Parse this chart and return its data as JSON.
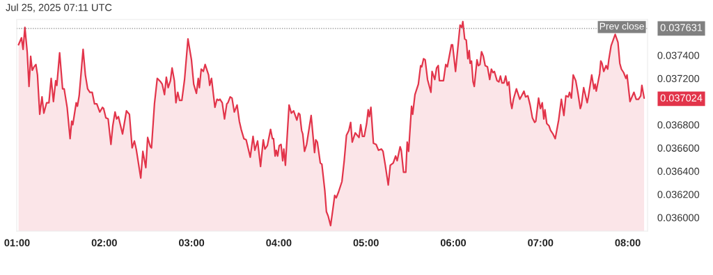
{
  "chart_data": {
    "type": "area",
    "annotations": [
      "Jul 25, 2025 07:11 UTC",
      "0.037024",
      "0.037631"
    ],
    "x": [
      1.017,
      1.051,
      1.069,
      1.09,
      1.116,
      1.137,
      1.156,
      1.174,
      1.195,
      1.216,
      1.234,
      1.26,
      1.286,
      1.307,
      1.339,
      1.365,
      1.391,
      1.417,
      1.443,
      1.456,
      1.488,
      1.522,
      1.54,
      1.574,
      1.608,
      1.626,
      1.639,
      1.678,
      1.692,
      1.712,
      1.757,
      1.783,
      1.809,
      1.835,
      1.861,
      1.888,
      1.914,
      1.948,
      1.979,
      1.992,
      2.018,
      2.044,
      2.076,
      2.097,
      2.123,
      2.141,
      2.162,
      2.209,
      2.254,
      2.288,
      2.319,
      2.345,
      2.366,
      2.418,
      2.442,
      2.476,
      2.497,
      2.528,
      2.541,
      2.575,
      2.607,
      2.646,
      2.664,
      2.69,
      2.711,
      2.732,
      2.758,
      2.777,
      2.803,
      2.821,
      2.842,
      2.863,
      2.889,
      2.92,
      2.959,
      2.999,
      3.025,
      3.056,
      3.077,
      3.09,
      3.111,
      3.135,
      3.156,
      3.195,
      3.208,
      3.229,
      3.268,
      3.292,
      3.312,
      3.326,
      3.352,
      3.378,
      3.404,
      3.417,
      3.443,
      3.464,
      3.49,
      3.522,
      3.548,
      3.569,
      3.6,
      3.626,
      3.673,
      3.705,
      3.726,
      3.757,
      3.791,
      3.822,
      3.841,
      3.869,
      3.906,
      3.927,
      3.94,
      3.958,
      3.971,
      3.987,
      4.005,
      4.026,
      4.045,
      4.058,
      4.076,
      4.118,
      4.144,
      4.17,
      4.207,
      4.227,
      4.241,
      4.262,
      4.275,
      4.295,
      4.319,
      4.371,
      4.41,
      4.424,
      4.442,
      4.476,
      4.494,
      4.528,
      4.546,
      4.567,
      4.594,
      4.62,
      4.641,
      4.659,
      4.685,
      4.724,
      4.75,
      4.776,
      4.803,
      4.824,
      4.842,
      4.876,
      4.92,
      4.939,
      4.959,
      4.98,
      5.007,
      5.025,
      5.038,
      5.056,
      5.085,
      5.116,
      5.143,
      5.177,
      5.195,
      5.221,
      5.255,
      5.278,
      5.312,
      5.339,
      5.357,
      5.391,
      5.404,
      5.43,
      5.456,
      5.472,
      5.488,
      5.522,
      5.535,
      5.561,
      5.6,
      5.626,
      5.639,
      5.66,
      5.678,
      5.705,
      5.744,
      5.757,
      5.788,
      5.809,
      5.828,
      5.841,
      5.888,
      5.914,
      5.932,
      5.979,
      5.992,
      6.026,
      6.078,
      6.097,
      6.11,
      6.131,
      6.149,
      6.167,
      6.183,
      6.193,
      6.209,
      6.227,
      6.241,
      6.272,
      6.288,
      6.306,
      6.324,
      6.345,
      6.366,
      6.392,
      6.418,
      6.437,
      6.455,
      6.471,
      6.502,
      6.523,
      6.541,
      6.559,
      6.58,
      6.601,
      6.62,
      6.638,
      6.659,
      6.672,
      6.69,
      6.724,
      6.763,
      6.784,
      6.81,
      6.829,
      6.855,
      6.881,
      6.907,
      6.933,
      6.946,
      6.978,
      6.999,
      7.02,
      7.038,
      7.051,
      7.072,
      7.098,
      7.116,
      7.143,
      7.169,
      7.208,
      7.239,
      7.268,
      7.291,
      7.318,
      7.333,
      7.354,
      7.375,
      7.404,
      7.43,
      7.456,
      7.469,
      7.495,
      7.535,
      7.548,
      7.587,
      7.613,
      7.626,
      7.639,
      7.678,
      7.691,
      7.705,
      7.725,
      7.752,
      7.77,
      7.783,
      7.809,
      7.856,
      7.888,
      7.909,
      7.927,
      7.953,
      7.979,
      7.992,
      8.026,
      8.071,
      8.097,
      8.123,
      8.149,
      8.162,
      8.188
    ],
    "series": [
      {
        "color": "#e2344a",
        "values": [
          0.03749,
          0.03755,
          0.03745,
          0.03764,
          0.03743,
          0.03713,
          0.03739,
          0.03727,
          0.0373,
          0.03732,
          0.03723,
          0.03689,
          0.03704,
          0.0369,
          0.03699,
          0.03699,
          0.0372,
          0.037,
          0.03718,
          0.03714,
          0.03742,
          0.03711,
          0.03711,
          0.03695,
          0.03668,
          0.03683,
          0.0368,
          0.03699,
          0.03696,
          0.03705,
          0.03745,
          0.03723,
          0.03711,
          0.03708,
          0.03708,
          0.03698,
          0.03698,
          0.03691,
          0.03695,
          0.03694,
          0.03686,
          0.03685,
          0.03663,
          0.03679,
          0.03691,
          0.03685,
          0.03687,
          0.03672,
          0.03692,
          0.03689,
          0.0366,
          0.03666,
          0.03659,
          0.03634,
          0.03657,
          0.03643,
          0.03669,
          0.03661,
          0.0366,
          0.03698,
          0.0372,
          0.03717,
          0.03715,
          0.03706,
          0.03721,
          0.03712,
          0.03718,
          0.03729,
          0.03718,
          0.03699,
          0.03708,
          0.03701,
          0.03701,
          0.03719,
          0.03754,
          0.03736,
          0.03715,
          0.03707,
          0.0372,
          0.03712,
          0.03728,
          0.03726,
          0.03732,
          0.03723,
          0.03714,
          0.0372,
          0.03695,
          0.03702,
          0.03701,
          0.03702,
          0.03699,
          0.03685,
          0.03698,
          0.03699,
          0.03704,
          0.03703,
          0.03691,
          0.03697,
          0.03683,
          0.03676,
          0.03668,
          0.03667,
          0.03652,
          0.0367,
          0.03658,
          0.03666,
          0.03644,
          0.03667,
          0.03659,
          0.03662,
          0.03676,
          0.03668,
          0.03668,
          0.03653,
          0.03658,
          0.03653,
          0.03662,
          0.03663,
          0.03649,
          0.03659,
          0.03645,
          0.03697,
          0.0369,
          0.03692,
          0.03684,
          0.0369,
          0.03689,
          0.03675,
          0.03672,
          0.03657,
          0.03663,
          0.03688,
          0.03656,
          0.03667,
          0.03665,
          0.03647,
          0.03646,
          0.03623,
          0.03605,
          0.03601,
          0.03593,
          0.03607,
          0.03619,
          0.03617,
          0.03622,
          0.03631,
          0.03649,
          0.03671,
          0.03675,
          0.03682,
          0.03665,
          0.03673,
          0.03669,
          0.0368,
          0.0367,
          0.0367,
          0.03681,
          0.03693,
          0.03687,
          0.03695,
          0.03664,
          0.03663,
          0.03658,
          0.03659,
          0.03657,
          0.03645,
          0.03628,
          0.03645,
          0.03647,
          0.03653,
          0.03649,
          0.03661,
          0.03658,
          0.03639,
          0.03639,
          0.03665,
          0.03657,
          0.03696,
          0.03689,
          0.03706,
          0.03715,
          0.03731,
          0.0373,
          0.03737,
          0.03736,
          0.03719,
          0.03708,
          0.03726,
          0.03719,
          0.03729,
          0.03731,
          0.03718,
          0.03718,
          0.03732,
          0.0373,
          0.03749,
          0.03749,
          0.03726,
          0.03766,
          0.03764,
          0.03769,
          0.03754,
          0.03753,
          0.03737,
          0.03744,
          0.03733,
          0.03735,
          0.03717,
          0.03713,
          0.03736,
          0.03731,
          0.03732,
          0.03743,
          0.03739,
          0.03731,
          0.0373,
          0.03719,
          0.03728,
          0.03725,
          0.03726,
          0.03718,
          0.03717,
          0.03722,
          0.03716,
          0.03716,
          0.03722,
          0.03714,
          0.03717,
          0.03699,
          0.03694,
          0.03702,
          0.03711,
          0.03702,
          0.03705,
          0.03709,
          0.03704,
          0.03705,
          0.03697,
          0.03686,
          0.03682,
          0.03683,
          0.03703,
          0.03694,
          0.03699,
          0.03685,
          0.03693,
          0.03681,
          0.03679,
          0.03675,
          0.03672,
          0.03668,
          0.03684,
          0.03702,
          0.03688,
          0.03705,
          0.03704,
          0.03708,
          0.03703,
          0.03723,
          0.03718,
          0.03707,
          0.03694,
          0.03697,
          0.03712,
          0.03699,
          0.03704,
          0.03723,
          0.03711,
          0.03715,
          0.03709,
          0.03724,
          0.03735,
          0.03733,
          0.03726,
          0.03731,
          0.03728,
          0.03736,
          0.03748,
          0.03758,
          0.03751,
          0.03733,
          0.03728,
          0.03725,
          0.0372,
          0.03723,
          0.037,
          0.03708,
          0.03702,
          0.03702,
          0.03705,
          0.03714,
          0.03703
        ]
      }
    ],
    "xlim": [
      0.996,
      8.227
    ],
    "xticks": [
      {
        "value": 1,
        "label": "01:00"
      },
      {
        "value": 2,
        "label": "02:00"
      },
      {
        "value": 3,
        "label": "03:00"
      },
      {
        "value": 4,
        "label": "04:00"
      },
      {
        "value": 5,
        "label": "05:00"
      },
      {
        "value": 6,
        "label": "06:00"
      },
      {
        "value": 7,
        "label": "07:00"
      },
      {
        "value": 8,
        "label": "08:00"
      }
    ],
    "ylim": [
      0.035882,
      0.037708
    ],
    "yticks": [
      {
        "value": 0.036,
        "label": "0.036000"
      },
      {
        "value": 0.0362,
        "label": "0.036200"
      },
      {
        "value": 0.0364,
        "label": "0.036400"
      },
      {
        "value": 0.0366,
        "label": "0.036600"
      },
      {
        "value": 0.0368,
        "label": "0.036800"
      },
      {
        "value": 0.0372,
        "label": "0.037200"
      },
      {
        "value": 0.0374,
        "label": "0.037400"
      }
    ],
    "ref_lines": [
      {
        "axis": "y",
        "value": 0.037631,
        "label": "Prev close",
        "color": "#808080",
        "line_style": "dotted"
      }
    ],
    "grid": false,
    "marker": "none",
    "line_style": "solid"
  }
}
